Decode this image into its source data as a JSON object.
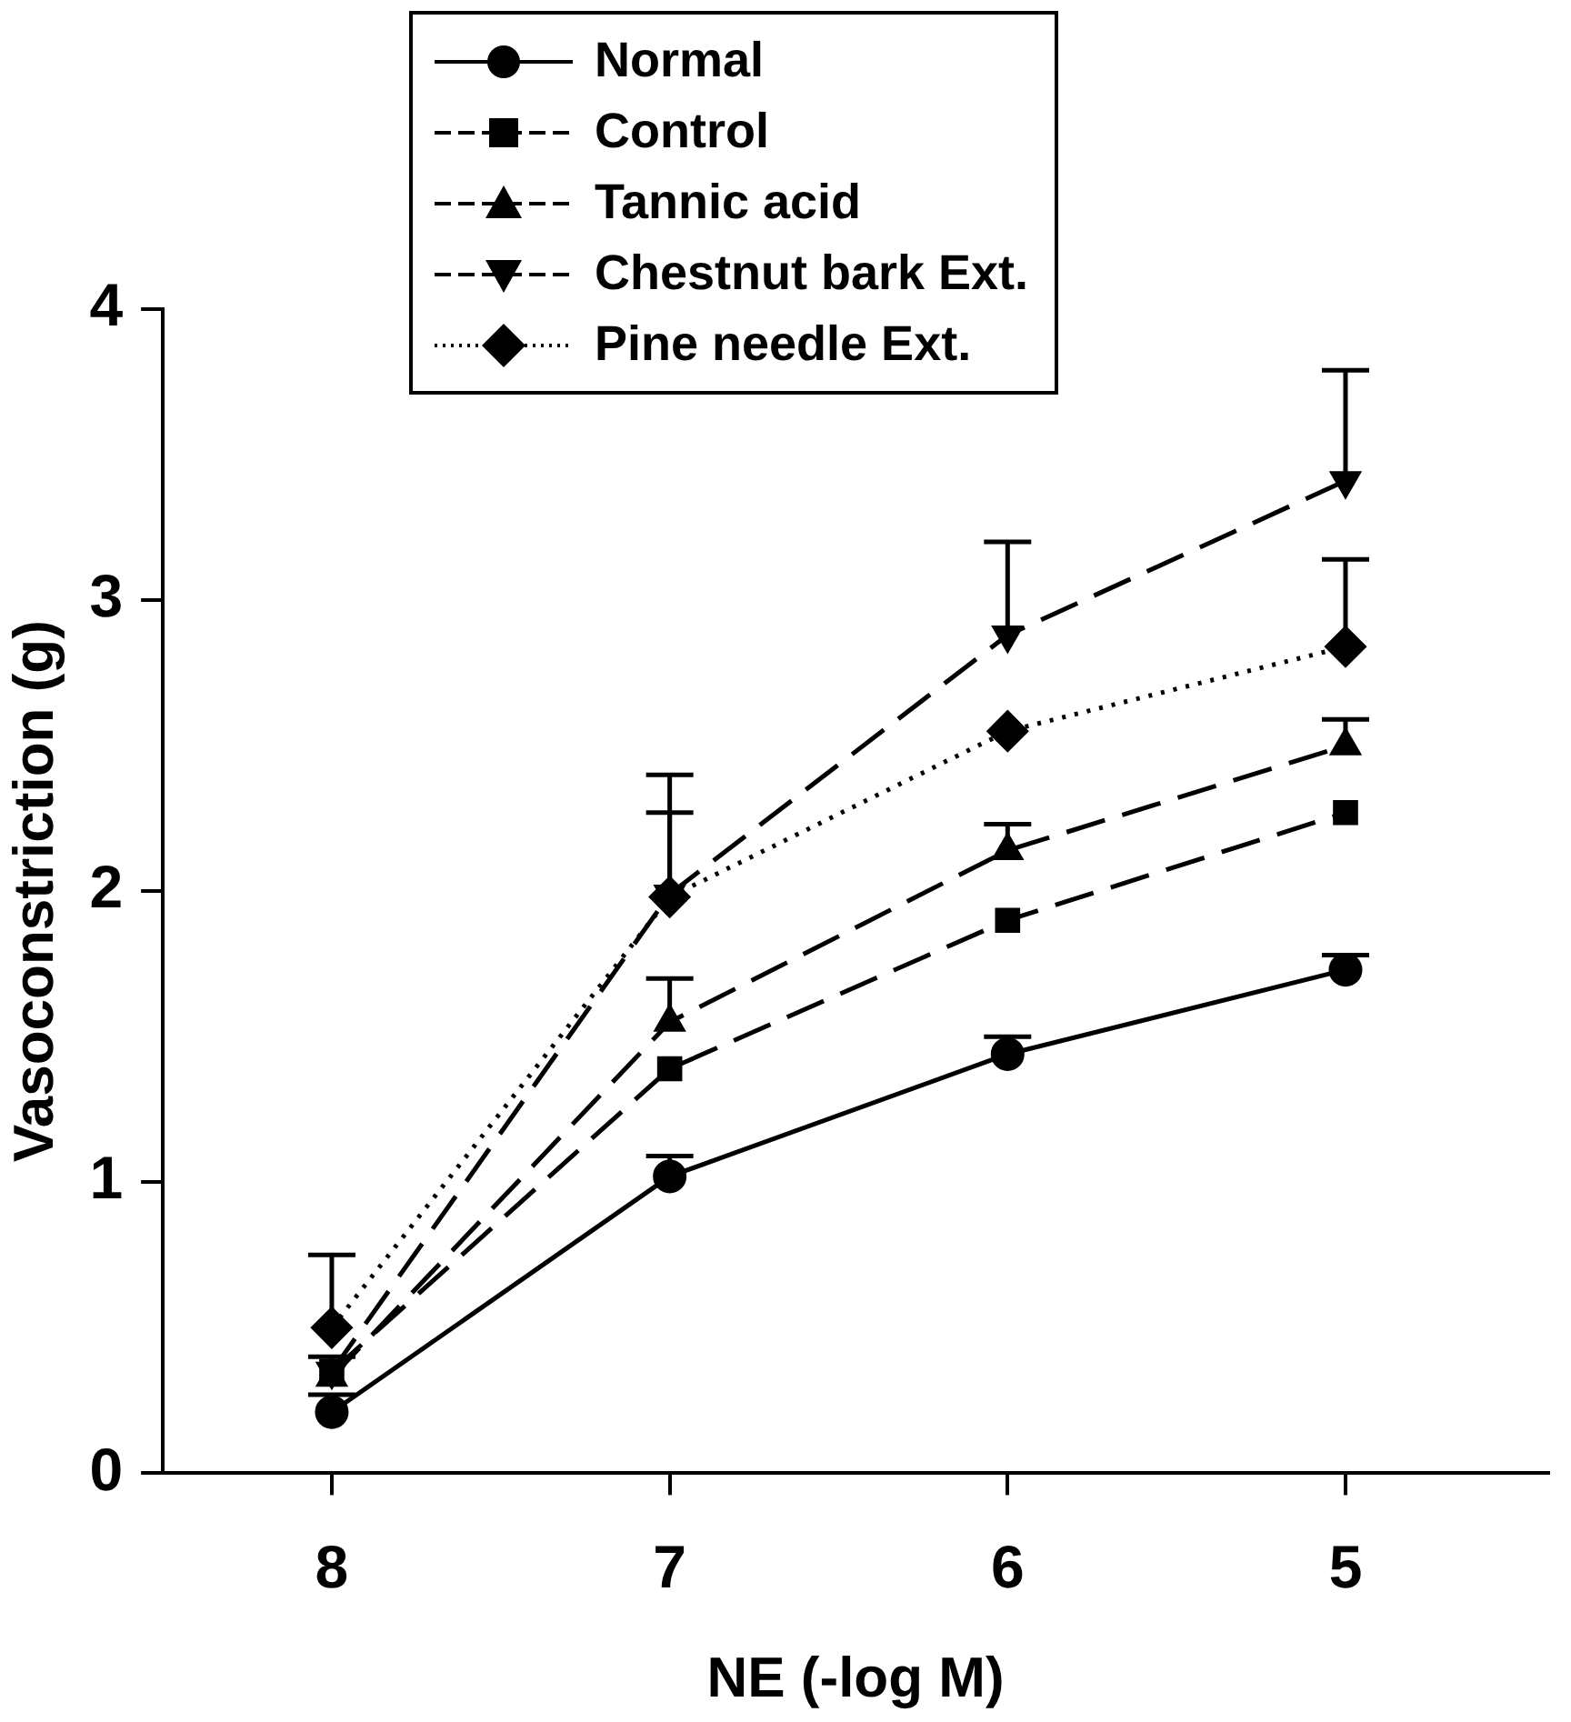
{
  "chart_data": {
    "type": "line",
    "xlabel": "NE (-log M)",
    "ylabel": "Vasoconstriction (g)",
    "x": [
      8,
      7,
      6,
      5
    ],
    "xlim": [
      8.5,
      4.4
    ],
    "xticks": [
      8,
      7,
      6,
      5
    ],
    "ylim": [
      0,
      4
    ],
    "yticks": [
      0,
      1,
      2,
      3,
      4
    ],
    "grid": false,
    "legend": "top",
    "series": [
      {
        "name": "Normal",
        "color": "#000000",
        "marker": "circle",
        "line_style": "solid",
        "values": [
          0.21,
          1.02,
          1.44,
          1.73
        ],
        "errors": [
          [
            0.21,
            0.27
          ],
          [
            1.02,
            1.09
          ],
          [
            1.44,
            1.5
          ],
          [
            1.73,
            1.78
          ]
        ]
      },
      {
        "name": "Control",
        "color": "#000000",
        "marker": "square",
        "line_style": "dashed",
        "values": [
          0.35,
          1.39,
          1.9,
          2.27
        ],
        "errors": [
          [
            0.35,
            0.4
          ],
          null,
          null,
          null
        ]
      },
      {
        "name": "Tannic acid",
        "color": "#000000",
        "marker": "triangle",
        "line_style": "dashed",
        "values": [
          0.33,
          1.55,
          2.14,
          2.5
        ],
        "errors": [
          null,
          [
            1.55,
            1.7
          ],
          [
            2.14,
            2.23
          ],
          [
            2.5,
            2.59
          ]
        ]
      },
      {
        "name": "Chestnut bark Ext.",
        "color": "#000000",
        "marker": "triangle-down",
        "line_style": "dashed",
        "values": [
          0.35,
          1.99,
          2.88,
          3.41
        ],
        "errors": [
          null,
          [
            1.99,
            2.4
          ],
          [
            2.88,
            3.2
          ],
          [
            3.41,
            3.79
          ]
        ]
      },
      {
        "name": "Pine needle Ext.",
        "color": "#000000",
        "marker": "diamond",
        "line_style": "dotted",
        "values": [
          0.5,
          1.98,
          2.55,
          2.84
        ],
        "errors": [
          [
            0.5,
            0.75
          ],
          [
            1.98,
            2.27
          ],
          null,
          [
            2.84,
            3.14
          ]
        ]
      }
    ]
  }
}
